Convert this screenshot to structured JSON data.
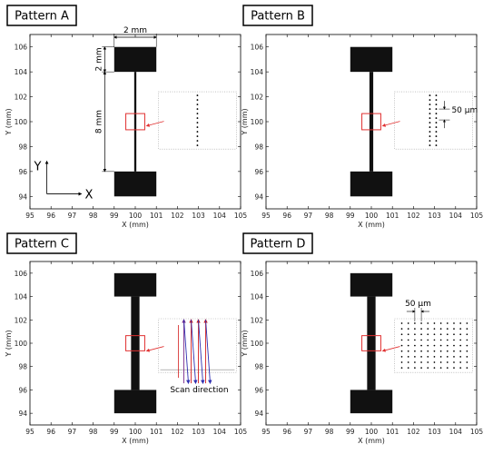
{
  "colors": {
    "frame": "#000000",
    "pad": "#111111",
    "highlight": "#e03030",
    "scan_red": "#d42020",
    "scan_blue": "#2f2fb0",
    "scan_purple": "#7a2a8a"
  },
  "chart_data": [
    {
      "type": "scatter",
      "title": "Pattern A",
      "xlabel": "X (mm)",
      "ylabel": "Y (mm)",
      "xlim": [
        95,
        105
      ],
      "ylim": [
        93,
        107
      ],
      "xticks": [
        "95",
        "96",
        "97",
        "98",
        "99",
        "100",
        "101",
        "102",
        "103",
        "104",
        "105"
      ],
      "yticks": [
        "94",
        "96",
        "98",
        "100",
        "102",
        "104",
        "106"
      ],
      "annotations": {
        "width": "2 mm",
        "pad_height": "2 mm",
        "gap": "8 mm",
        "axis_x": "X",
        "axis_y": "Y"
      },
      "shapes": {
        "pad_top": [
          99,
          104,
          101,
          106
        ],
        "pad_bottom": [
          99,
          94,
          101,
          96
        ],
        "line_halfwidth": 0.05
      }
    },
    {
      "type": "scatter",
      "title": "Pattern B",
      "xlabel": "X (mm)",
      "ylabel": "Y (mm)",
      "xlim": [
        95,
        105
      ],
      "ylim": [
        93,
        107
      ],
      "xticks": [
        "95",
        "96",
        "97",
        "98",
        "99",
        "100",
        "101",
        "102",
        "103",
        "104",
        "105"
      ],
      "yticks": [
        "94",
        "96",
        "98",
        "100",
        "102",
        "104",
        "106"
      ],
      "annotations": {
        "pitch": "50 μm"
      },
      "shapes": {
        "pad_top": [
          99,
          104,
          101,
          106
        ],
        "pad_bottom": [
          99,
          94,
          101,
          96
        ],
        "line_halfwidth": 0.09
      }
    },
    {
      "type": "scatter",
      "title": "Pattern C",
      "xlabel": "X (mm)",
      "ylabel": "Y (mm)",
      "xlim": [
        95,
        105
      ],
      "ylim": [
        93,
        107
      ],
      "xticks": [
        "95",
        "96",
        "97",
        "98",
        "99",
        "100",
        "101",
        "102",
        "103",
        "104",
        "105"
      ],
      "yticks": [
        "94",
        "96",
        "98",
        "100",
        "102",
        "104",
        "106"
      ],
      "annotations": {
        "scan": "Scan direction"
      },
      "shapes": {
        "pad_top": [
          99,
          104,
          101,
          106
        ],
        "pad_bottom": [
          99,
          94,
          101,
          96
        ],
        "line_halfwidth": 0.2
      }
    },
    {
      "type": "scatter",
      "title": "Pattern D",
      "xlabel": "X (mm)",
      "ylabel": "Y (mm)",
      "xlim": [
        95,
        105
      ],
      "ylim": [
        93,
        107
      ],
      "xticks": [
        "95",
        "96",
        "97",
        "98",
        "99",
        "100",
        "101",
        "102",
        "103",
        "104",
        "105"
      ],
      "yticks": [
        "94",
        "96",
        "98",
        "100",
        "102",
        "104",
        "106"
      ],
      "annotations": {
        "pitch": "50 μm"
      },
      "shapes": {
        "pad_top": [
          99,
          104,
          101,
          106
        ],
        "pad_bottom": [
          99,
          94,
          101,
          96
        ],
        "line_halfwidth": 0.2
      }
    }
  ]
}
